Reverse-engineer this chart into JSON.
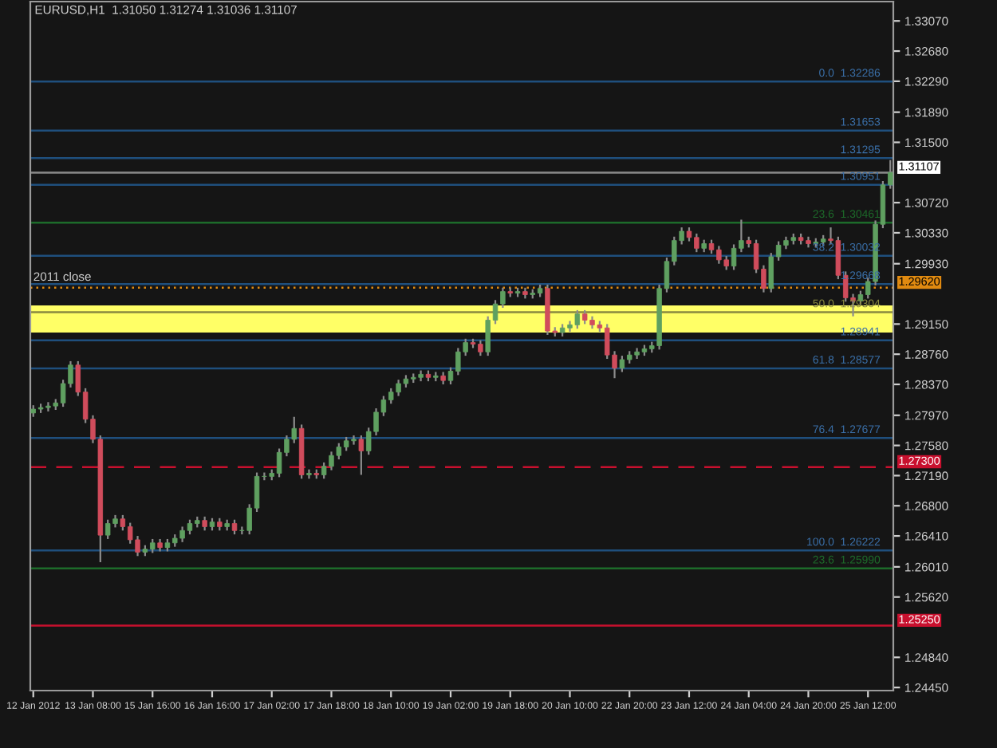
{
  "chart_data": {
    "type": "candlestick",
    "title": "EURUSD,H1  1.31050 1.31274 1.31036 1.31107",
    "categories": [
      "12 Jan 2012",
      null,
      null,
      null,
      null,
      null,
      null,
      null,
      "13 Jan 08:00",
      null,
      null,
      null,
      null,
      null,
      null,
      null,
      "15 Jan 16:00",
      null,
      null,
      null,
      null,
      null,
      null,
      null,
      "16 Jan 16:00",
      null,
      null,
      null,
      null,
      null,
      null,
      null,
      "17 Jan 02:00",
      null,
      null,
      null,
      null,
      null,
      null,
      null,
      "17 Jan 18:00",
      null,
      null,
      null,
      null,
      null,
      null,
      null,
      "18 Jan 10:00",
      null,
      null,
      null,
      null,
      null,
      null,
      null,
      "19 Jan 02:00",
      null,
      null,
      null,
      null,
      null,
      null,
      null,
      "19 Jan 18:00",
      null,
      null,
      null,
      null,
      null,
      null,
      null,
      "20 Jan 10:00",
      null,
      null,
      null,
      null,
      null,
      null,
      null,
      "22 Jan 20:00",
      null,
      null,
      null,
      null,
      null,
      null,
      null,
      "23 Jan 12:00",
      null,
      null,
      null,
      null,
      null,
      null,
      null,
      "24 Jan 04:00",
      null,
      null,
      null,
      null,
      null,
      null,
      null,
      "24 Jan 20:00",
      null,
      null,
      null,
      null,
      null,
      null,
      null,
      "25 Jan 12:00",
      null,
      null,
      null
    ],
    "ohlc": [
      [
        1.28,
        1.281,
        1.2795,
        1.2805
      ],
      [
        1.2805,
        1.2812,
        1.28,
        1.2807
      ],
      [
        1.2807,
        1.2814,
        1.2802,
        1.2809
      ],
      [
        1.2809,
        1.2818,
        1.2804,
        1.2813
      ],
      [
        1.2813,
        1.2843,
        1.2808,
        1.2838
      ],
      [
        1.2838,
        1.2867,
        1.2833,
        1.2862
      ],
      [
        1.2862,
        1.2867,
        1.2822,
        1.2827
      ],
      [
        1.2827,
        1.2832,
        1.2787,
        1.2792
      ],
      [
        1.2792,
        1.2797,
        1.2761,
        1.2766
      ],
      [
        1.2766,
        1.2771,
        1.2607,
        1.2642
      ],
      [
        1.2642,
        1.2662,
        1.2637,
        1.2657
      ],
      [
        1.2657,
        1.2668,
        1.2652,
        1.2663
      ],
      [
        1.2663,
        1.2668,
        1.2648,
        1.2653
      ],
      [
        1.2653,
        1.2658,
        1.2631,
        1.2636
      ],
      [
        1.2636,
        1.2641,
        1.2615,
        1.262
      ],
      [
        1.262,
        1.2629,
        1.2615,
        1.2624
      ],
      [
        1.2624,
        1.2637,
        1.2619,
        1.2632
      ],
      [
        1.2632,
        1.2637,
        1.2621,
        1.2626
      ],
      [
        1.2626,
        1.2637,
        1.2621,
        1.2632
      ],
      [
        1.2632,
        1.2643,
        1.2627,
        1.2638
      ],
      [
        1.2638,
        1.2653,
        1.2633,
        1.2648
      ],
      [
        1.2648,
        1.2662,
        1.2643,
        1.2657
      ],
      [
        1.2657,
        1.2666,
        1.2652,
        1.2661
      ],
      [
        1.2661,
        1.2666,
        1.2648,
        1.2653
      ],
      [
        1.2653,
        1.2664,
        1.2648,
        1.2659
      ],
      [
        1.2659,
        1.2664,
        1.2648,
        1.2653
      ],
      [
        1.2653,
        1.2662,
        1.2648,
        1.2657
      ],
      [
        1.2657,
        1.2662,
        1.2643,
        1.2648
      ],
      [
        1.2648,
        1.2653,
        1.2643,
        1.2648
      ],
      [
        1.2648,
        1.2682,
        1.2643,
        1.2677
      ],
      [
        1.2677,
        1.2723,
        1.2672,
        1.2718
      ],
      [
        1.2718,
        1.2723,
        1.2713,
        1.2718
      ],
      [
        1.2718,
        1.2727,
        1.2713,
        1.2722
      ],
      [
        1.2722,
        1.2754,
        1.2717,
        1.2749
      ],
      [
        1.2749,
        1.2771,
        1.2744,
        1.2766
      ],
      [
        1.2766,
        1.2795,
        1.2761,
        1.278
      ],
      [
        1.278,
        1.2785,
        1.2715,
        1.272
      ],
      [
        1.272,
        1.2727,
        1.2715,
        1.2722
      ],
      [
        1.2722,
        1.2727,
        1.2715,
        1.272
      ],
      [
        1.272,
        1.2736,
        1.2715,
        1.2731
      ],
      [
        1.2731,
        1.275,
        1.2726,
        1.2745
      ],
      [
        1.2745,
        1.2761,
        1.274,
        1.2756
      ],
      [
        1.2756,
        1.2769,
        1.2751,
        1.2764
      ],
      [
        1.2764,
        1.2771,
        1.2759,
        1.2766
      ],
      [
        1.2766,
        1.2771,
        1.272,
        1.2751
      ],
      [
        1.2751,
        1.2781,
        1.2746,
        1.2776
      ],
      [
        1.2776,
        1.2806,
        1.2771,
        1.2801
      ],
      [
        1.2801,
        1.2822,
        1.2796,
        1.2817
      ],
      [
        1.2817,
        1.2832,
        1.2812,
        1.2827
      ],
      [
        1.2827,
        1.2843,
        1.2822,
        1.2838
      ],
      [
        1.2838,
        1.2849,
        1.2833,
        1.2844
      ],
      [
        1.2844,
        1.2851,
        1.2839,
        1.2846
      ],
      [
        1.2846,
        1.2855,
        1.2841,
        1.285
      ],
      [
        1.285,
        1.2855,
        1.2841,
        1.2846
      ],
      [
        1.2846,
        1.2853,
        1.2841,
        1.2848
      ],
      [
        1.2848,
        1.2853,
        1.2837,
        1.2842
      ],
      [
        1.2842,
        1.2859,
        1.2837,
        1.2854
      ],
      [
        1.2854,
        1.2884,
        1.2849,
        1.2879
      ],
      [
        1.2879,
        1.2896,
        1.2874,
        1.2891
      ],
      [
        1.2891,
        1.2896,
        1.2884,
        1.2889
      ],
      [
        1.2889,
        1.2894,
        1.2874,
        1.2879
      ],
      [
        1.2879,
        1.2925,
        1.2874,
        1.292
      ],
      [
        1.292,
        1.2946,
        1.2915,
        1.2941
      ],
      [
        1.2941,
        1.2962,
        1.2936,
        1.2957
      ],
      [
        1.2957,
        1.2962,
        1.295,
        1.2955
      ],
      [
        1.2955,
        1.2962,
        1.295,
        1.2957
      ],
      [
        1.2957,
        1.2962,
        1.2948,
        1.2953
      ],
      [
        1.2953,
        1.296,
        1.2948,
        1.2955
      ],
      [
        1.2955,
        1.2966,
        1.295,
        1.2961
      ],
      [
        1.2961,
        1.2966,
        1.2901,
        1.2906
      ],
      [
        1.2906,
        1.2911,
        1.2899,
        1.2904
      ],
      [
        1.2904,
        1.2915,
        1.2899,
        1.291
      ],
      [
        1.291,
        1.2919,
        1.2905,
        1.2914
      ],
      [
        1.2914,
        1.2933,
        1.2909,
        1.2928
      ],
      [
        1.2928,
        1.2933,
        1.2915,
        1.292
      ],
      [
        1.292,
        1.2925,
        1.2909,
        1.2914
      ],
      [
        1.2914,
        1.2919,
        1.2905,
        1.291
      ],
      [
        1.291,
        1.2915,
        1.287,
        1.2875
      ],
      [
        1.2875,
        1.288,
        1.2845,
        1.2858
      ],
      [
        1.2858,
        1.2874,
        1.2853,
        1.2869
      ],
      [
        1.2869,
        1.288,
        1.2864,
        1.2875
      ],
      [
        1.2875,
        1.2884,
        1.287,
        1.2879
      ],
      [
        1.2879,
        1.2888,
        1.2874,
        1.2883
      ],
      [
        1.2883,
        1.2892,
        1.2878,
        1.2887
      ],
      [
        1.2887,
        1.2966,
        1.2882,
        1.2961
      ],
      [
        1.2961,
        1.3001,
        1.2956,
        1.2996
      ],
      [
        1.2996,
        1.3028,
        1.2991,
        1.3023
      ],
      [
        1.3023,
        1.304,
        1.3018,
        1.3035
      ],
      [
        1.3035,
        1.304,
        1.3022,
        1.3027
      ],
      [
        1.3027,
        1.3032,
        1.3008,
        1.3013
      ],
      [
        1.3013,
        1.3024,
        1.3008,
        1.3019
      ],
      [
        1.3019,
        1.3024,
        1.3006,
        1.3011
      ],
      [
        1.3011,
        1.3016,
        1.2993,
        1.2998
      ],
      [
        1.2998,
        1.3003,
        1.2985,
        1.299
      ],
      [
        1.299,
        1.3018,
        1.2985,
        1.3013
      ],
      [
        1.3013,
        1.305,
        1.3008,
        1.3023
      ],
      [
        1.3023,
        1.3028,
        1.3014,
        1.3019
      ],
      [
        1.3019,
        1.3024,
        1.2981,
        1.2986
      ],
      [
        1.2986,
        1.2991,
        1.2956,
        1.2961
      ],
      [
        1.2961,
        1.3007,
        1.2956,
        1.3002
      ],
      [
        1.3002,
        1.3022,
        1.2997,
        1.3017
      ],
      [
        1.3017,
        1.3028,
        1.3012,
        1.3023
      ],
      [
        1.3023,
        1.3032,
        1.3018,
        1.3027
      ],
      [
        1.3027,
        1.3032,
        1.3018,
        1.3023
      ],
      [
        1.3023,
        1.3028,
        1.3014,
        1.3019
      ],
      [
        1.3019,
        1.3026,
        1.3014,
        1.3021
      ],
      [
        1.3021,
        1.303,
        1.3016,
        1.3025
      ],
      [
        1.3025,
        1.304,
        1.3018,
        1.3023
      ],
      [
        1.3023,
        1.3028,
        1.2973,
        1.2978
      ],
      [
        1.2978,
        1.2983,
        1.2944,
        1.2949
      ],
      [
        1.2949,
        1.2954,
        1.2925,
        1.2945
      ],
      [
        1.2945,
        1.2958,
        1.294,
        1.2953
      ],
      [
        1.2953,
        1.2975,
        1.2948,
        1.297
      ],
      [
        1.297,
        1.3049,
        1.2965,
        1.3044
      ],
      [
        1.3044,
        1.31,
        1.3039,
        1.3095
      ],
      [
        1.3095,
        1.3127,
        1.309,
        1.3111
      ]
    ],
    "ylim": [
      1.2441,
      1.3332
    ],
    "yticks": [
      {
        "value": 1.3307,
        "label": "1.33070"
      },
      {
        "value": 1.3268,
        "label": "1.32680"
      },
      {
        "value": 1.3229,
        "label": "1.32290"
      },
      {
        "value": 1.3189,
        "label": "1.31890"
      },
      {
        "value": 1.315,
        "label": "1.31500"
      },
      {
        "value": 1.3072,
        "label": "1.30720"
      },
      {
        "value": 1.3033,
        "label": "1.30330"
      },
      {
        "value": 1.2993,
        "label": "1.29930"
      },
      {
        "value": 1.2915,
        "label": "1.29150"
      },
      {
        "value": 1.2876,
        "label": "1.28760"
      },
      {
        "value": 1.2837,
        "label": "1.28370"
      },
      {
        "value": 1.2797,
        "label": "1.27970"
      },
      {
        "value": 1.2758,
        "label": "1.27580"
      },
      {
        "value": 1.2719,
        "label": "1.27190"
      },
      {
        "value": 1.268,
        "label": "1.26800"
      },
      {
        "value": 1.2641,
        "label": "1.26410"
      },
      {
        "value": 1.2601,
        "label": "1.26010"
      },
      {
        "value": 1.2562,
        "label": "1.25620"
      },
      {
        "value": 1.2484,
        "label": "1.24840"
      },
      {
        "value": 1.2445,
        "label": "1.24450"
      }
    ],
    "bands": [
      {
        "axis": "y",
        "from": 1.2904,
        "to": 1.2939,
        "color": "#ffff66"
      }
    ],
    "ref_lines": [
      {
        "axis": "y",
        "value": 1.32286,
        "label": "0.0  1.32286",
        "color": "#1f4f7d"
      },
      {
        "axis": "y",
        "value": 1.31653,
        "label": "1.31653",
        "color": "#1f4f7d"
      },
      {
        "axis": "y",
        "value": 1.31295,
        "label": "1.31295",
        "color": "#1f4f7d"
      },
      {
        "axis": "y",
        "value": 1.30951,
        "label": "1.30951",
        "color": "#1f4f7d"
      },
      {
        "axis": "y",
        "value": 1.30461,
        "label": "23.6  1.30461",
        "color": "#1d6b2a"
      },
      {
        "axis": "y",
        "value": 1.30032,
        "label": "38.2  1.30032",
        "color": "#1f4f7d"
      },
      {
        "axis": "y",
        "value": 1.29668,
        "label": "1.29668",
        "color": "#1f4f7d"
      },
      {
        "axis": "y",
        "value": 1.29304,
        "label": "50.0  1.29304",
        "color": "#8a8a40"
      },
      {
        "axis": "y",
        "value": 1.28941,
        "label": "1.28941",
        "color": "#1f4f7d"
      },
      {
        "axis": "y",
        "value": 1.28577,
        "label": "61.8  1.28577",
        "color": "#1f4f7d"
      },
      {
        "axis": "y",
        "value": 1.27677,
        "label": "76.4  1.27677",
        "color": "#1f4f7d"
      },
      {
        "axis": "y",
        "value": 1.26222,
        "label": "100.0  1.26222",
        "color": "#1f4f7d"
      },
      {
        "axis": "y",
        "value": 1.2599,
        "label": "23.6  1.25990",
        "color": "#1d6b2a"
      },
      {
        "axis": "y",
        "value": 1.31107,
        "label": "1.31107",
        "color": "#8a8a8a",
        "line_style": "solid"
      },
      {
        "axis": "y",
        "value": 1.2962,
        "label": "1.29620",
        "color": "#e08a10",
        "line_style": "dotted"
      },
      {
        "axis": "y",
        "value": 1.273,
        "label": "1.27300",
        "color": "#c8102e",
        "line_style": "dashed"
      },
      {
        "axis": "y",
        "value": 1.2525,
        "label": "1.25250",
        "color": "#c8102e",
        "line_style": "solid"
      }
    ],
    "annotations": [
      {
        "text": "2011 close",
        "x": "12 Jan 2012",
        "y": 1.2962
      }
    ],
    "grid": false,
    "legend": false
  }
}
